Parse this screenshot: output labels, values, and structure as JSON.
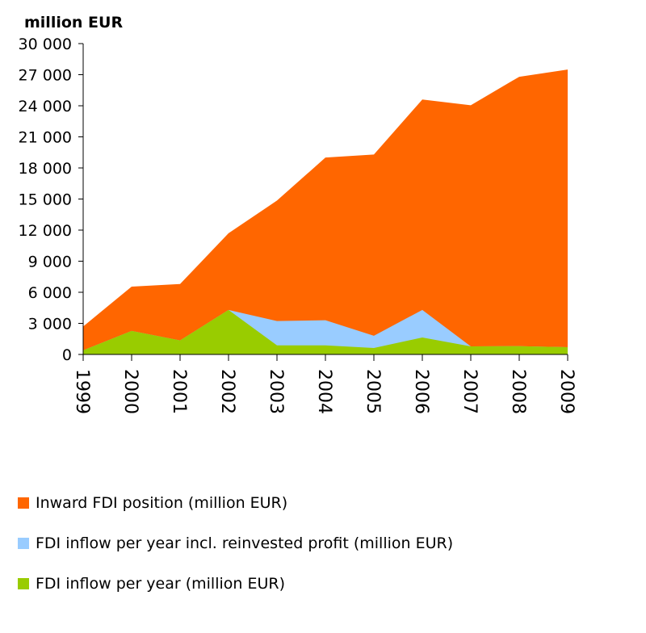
{
  "chart_data": {
    "type": "area",
    "title": "",
    "ylabel": "million EUR",
    "xlabel": "",
    "ylim": [
      0,
      30000
    ],
    "yticks": [
      0,
      3000,
      6000,
      9000,
      12000,
      15000,
      18000,
      21000,
      24000,
      27000,
      30000
    ],
    "ytick_labels": [
      "0",
      "3 000",
      "6 000",
      "9 000",
      "12 000",
      "15 000",
      "18 000",
      "21 000",
      "24 000",
      "27 000",
      "30 000"
    ],
    "categories": [
      "1999",
      "2000",
      "2001",
      "2002",
      "2003",
      "2004",
      "2005",
      "2006",
      "2007",
      "2008",
      "2009"
    ],
    "grid": false,
    "legend_position": "bottom",
    "series": [
      {
        "name": "Inward FDI position (million EUR)",
        "color": "#ff6600",
        "values": [
          2700,
          6550,
          6800,
          11700,
          14850,
          19000,
          19300,
          24600,
          24050,
          26800,
          27500
        ]
      },
      {
        "name": "FDI inflow per year  incl. reinvested profit (million EUR)",
        "color": "#99ccff",
        "values": [
          400,
          2270,
          1350,
          4300,
          3220,
          3300,
          1800,
          4300,
          780,
          800,
          700
        ]
      },
      {
        "name": "FDI inflow per year (million EUR)",
        "color": "#99cc00",
        "values": [
          400,
          2270,
          1350,
          4300,
          880,
          880,
          625,
          1640,
          780,
          800,
          700
        ]
      }
    ]
  }
}
